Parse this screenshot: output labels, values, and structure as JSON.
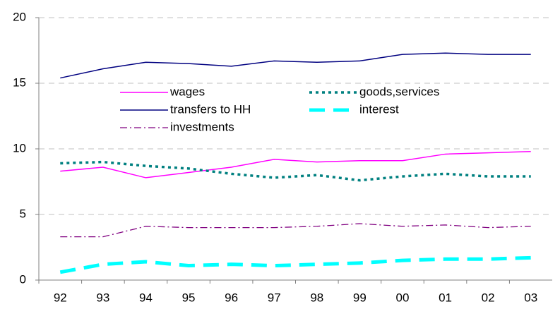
{
  "chart_data": {
    "type": "line",
    "categories": [
      "92",
      "93",
      "94",
      "95",
      "96",
      "97",
      "98",
      "99",
      "00",
      "01",
      "02",
      "03"
    ],
    "series": [
      {
        "name": "wages",
        "color": "#ff00ff",
        "style": "solid",
        "values": [
          8.3,
          8.6,
          7.8,
          8.2,
          8.6,
          9.2,
          9.0,
          9.1,
          9.1,
          9.6,
          9.7,
          9.8
        ]
      },
      {
        "name": "goods,services",
        "color": "#008080",
        "style": "dotted",
        "values": [
          8.9,
          9.0,
          8.7,
          8.5,
          8.1,
          7.8,
          8.0,
          7.6,
          7.9,
          8.1,
          7.9,
          7.9
        ]
      },
      {
        "name": "transfers to HH",
        "color": "#000080",
        "style": "solid",
        "values": [
          15.4,
          16.1,
          16.6,
          16.5,
          16.3,
          16.7,
          16.6,
          16.7,
          17.2,
          17.3,
          17.2,
          17.2
        ]
      },
      {
        "name": "interest",
        "color": "#00ffff",
        "style": "dashed",
        "values": [
          0.6,
          1.2,
          1.4,
          1.1,
          1.2,
          1.1,
          1.2,
          1.3,
          1.5,
          1.6,
          1.6,
          1.7
        ]
      },
      {
        "name": "investments",
        "color": "#800080",
        "style": "dashdot",
        "values": [
          3.3,
          3.3,
          4.1,
          4.0,
          4.0,
          4.0,
          4.1,
          4.3,
          4.1,
          4.2,
          4.0,
          4.1
        ]
      }
    ],
    "ylim": [
      0,
      20
    ],
    "yticks": [
      0,
      5,
      10,
      15,
      20
    ],
    "grid": true
  }
}
